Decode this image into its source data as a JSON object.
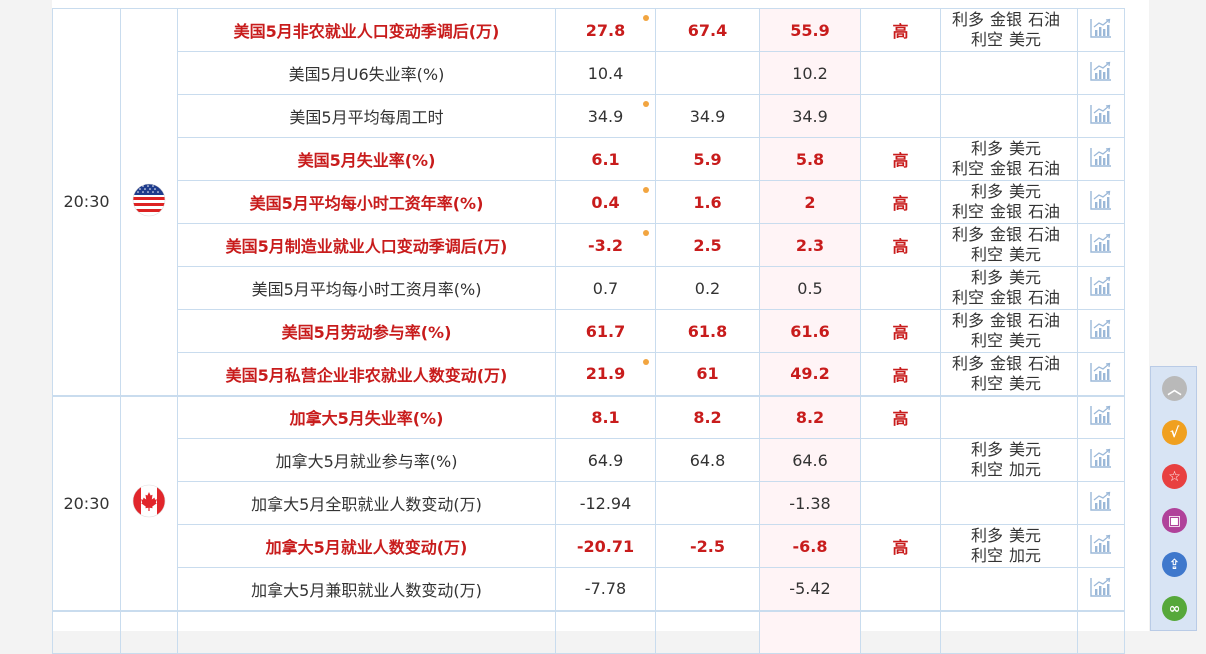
{
  "groups": [
    {
      "time": "20:30",
      "country": "US",
      "rows": [
        {
          "name": "美国5月非农就业人口变动季调后(万)",
          "prev": "27.8",
          "forecast": "67.4",
          "actual": "55.9",
          "level": "高",
          "bull": [
            "利多",
            "金银",
            "石油"
          ],
          "bear": [
            "利空",
            "美元"
          ],
          "imp": true,
          "dot": true
        },
        {
          "name": "美国5月U6失业率(%)",
          "prev": "10.4",
          "forecast": "",
          "actual": "10.2",
          "level": "",
          "bull": [],
          "bear": [],
          "imp": false,
          "dot": false
        },
        {
          "name": "美国5月平均每周工时",
          "prev": "34.9",
          "forecast": "34.9",
          "actual": "34.9",
          "level": "",
          "bull": [],
          "bear": [],
          "imp": false,
          "dot": true
        },
        {
          "name": "美国5月失业率(%)",
          "prev": "6.1",
          "forecast": "5.9",
          "actual": "5.8",
          "level": "高",
          "bull": [
            "利多",
            "美元"
          ],
          "bear": [
            "利空",
            "金银",
            "石油"
          ],
          "imp": true,
          "dot": false
        },
        {
          "name": "美国5月平均每小时工资年率(%)",
          "prev": "0.4",
          "forecast": "1.6",
          "actual": "2",
          "level": "高",
          "bull": [
            "利多",
            "美元"
          ],
          "bear": [
            "利空",
            "金银",
            "石油"
          ],
          "imp": true,
          "dot": true
        },
        {
          "name": "美国5月制造业就业人口变动季调后(万)",
          "prev": "-3.2",
          "forecast": "2.5",
          "actual": "2.3",
          "level": "高",
          "bull": [
            "利多",
            "金银",
            "石油"
          ],
          "bear": [
            "利空",
            "美元"
          ],
          "imp": true,
          "dot": true
        },
        {
          "name": "美国5月平均每小时工资月率(%)",
          "prev": "0.7",
          "forecast": "0.2",
          "actual": "0.5",
          "level": "",
          "bull": [
            "利多",
            "美元"
          ],
          "bear": [
            "利空",
            "金银",
            "石油"
          ],
          "imp": false,
          "dot": false
        },
        {
          "name": "美国5月劳动参与率(%)",
          "prev": "61.7",
          "forecast": "61.8",
          "actual": "61.6",
          "level": "高",
          "bull": [
            "利多",
            "金银",
            "石油"
          ],
          "bear": [
            "利空",
            "美元"
          ],
          "imp": true,
          "dot": false
        },
        {
          "name": "美国5月私营企业非农就业人数变动(万)",
          "prev": "21.9",
          "forecast": "61",
          "actual": "49.2",
          "level": "高",
          "bull": [
            "利多",
            "金银",
            "石油"
          ],
          "bear": [
            "利空",
            "美元"
          ],
          "imp": true,
          "dot": true
        }
      ]
    },
    {
      "time": "20:30",
      "country": "CA",
      "rows": [
        {
          "name": "加拿大5月失业率(%)",
          "prev": "8.1",
          "forecast": "8.2",
          "actual": "8.2",
          "level": "高",
          "bull": [],
          "bear": [],
          "imp": true,
          "dot": false
        },
        {
          "name": "加拿大5月就业参与率(%)",
          "prev": "64.9",
          "forecast": "64.8",
          "actual": "64.6",
          "level": "",
          "bull": [
            "利多",
            "美元"
          ],
          "bear": [
            "利空",
            "加元"
          ],
          "imp": false,
          "dot": false
        },
        {
          "name": "加拿大5月全职就业人数变动(万)",
          "prev": "-12.94",
          "forecast": "",
          "actual": "-1.38",
          "level": "",
          "bull": [],
          "bear": [],
          "imp": false,
          "dot": false
        },
        {
          "name": "加拿大5月就业人数变动(万)",
          "prev": "-20.71",
          "forecast": "-2.5",
          "actual": "-6.8",
          "level": "高",
          "bull": [
            "利多",
            "美元"
          ],
          "bear": [
            "利空",
            "加元"
          ],
          "imp": true,
          "dot": false
        },
        {
          "name": "加拿大5月兼职就业人数变动(万)",
          "prev": "-7.78",
          "forecast": "",
          "actual": "-5.42",
          "level": "",
          "bull": [],
          "bear": [],
          "imp": false,
          "dot": false
        }
      ]
    }
  ],
  "sidebar": [
    {
      "name": "scroll-top-button",
      "icon": "chevron-up-icon",
      "color": "#b9b9b9",
      "glyph": "︿"
    },
    {
      "name": "check-button",
      "icon": "check-icon",
      "color": "#f0a020",
      "glyph": "√"
    },
    {
      "name": "favorite-button",
      "icon": "star-icon",
      "color": "#e84040",
      "glyph": "☆"
    },
    {
      "name": "calendar-button",
      "icon": "calendar-icon",
      "color": "#b0429a",
      "glyph": "▣"
    },
    {
      "name": "share-button",
      "icon": "share-icon",
      "color": "#3f78cc",
      "glyph": "⇪"
    },
    {
      "name": "link-button",
      "icon": "link-icon",
      "color": "#56a83a",
      "glyph": "∞"
    }
  ]
}
